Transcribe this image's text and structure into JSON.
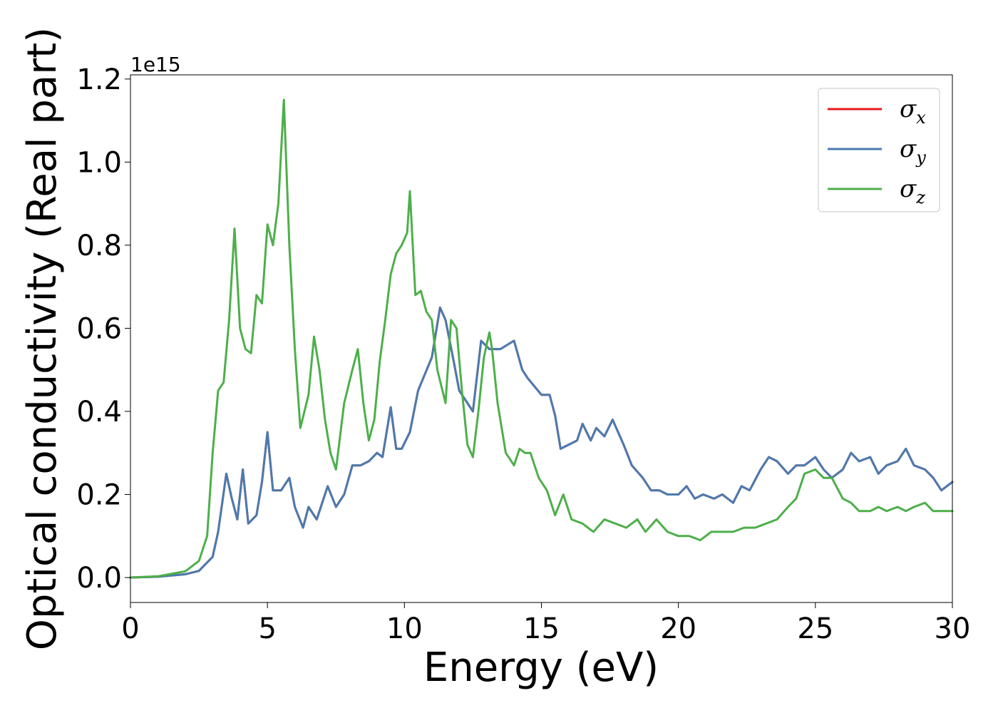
{
  "chart_data": {
    "type": "line",
    "xlabel": "Energy (eV)",
    "ylabel": "Optical conductivity (Real part)",
    "y_offset_label": "1e15",
    "xlim": [
      0,
      30
    ],
    "ylim": [
      -0.06,
      1.21
    ],
    "x_ticks": [
      0,
      5,
      10,
      15,
      20,
      25,
      30
    ],
    "y_ticks": [
      0.0,
      0.2,
      0.4,
      0.6,
      0.8,
      1.0,
      1.2
    ],
    "x_tick_labels": [
      "0",
      "5",
      "10",
      "15",
      "20",
      "25",
      "30"
    ],
    "y_tick_labels": [
      "0.0",
      "0.2",
      "0.4",
      "0.6",
      "0.8",
      "1.0",
      "1.2"
    ],
    "grid": false,
    "legend_position": "top-right",
    "series": [
      {
        "name": "σx",
        "symbol": "σ",
        "subscript": "x",
        "color": "#e41a1c",
        "hidden_under": "σy",
        "x": [
          0,
          1,
          2,
          2.5,
          3,
          3.2,
          3.5,
          3.7,
          3.9,
          4.1,
          4.3,
          4.6,
          4.8,
          5,
          5.2,
          5.5,
          5.8,
          6,
          6.3,
          6.5,
          6.8,
          7.2,
          7.5,
          7.8,
          8.1,
          8.4,
          8.7,
          9,
          9.2,
          9.5,
          9.7,
          9.9,
          10.2,
          10.5,
          11,
          11.3,
          11.5,
          11.8,
          12,
          12.5,
          12.8,
          13.1,
          13.5,
          14,
          14.3,
          14.5,
          15,
          15.3,
          15.5,
          15.7,
          16,
          16.3,
          16.5,
          16.8,
          17,
          17.3,
          17.6,
          18,
          18.3,
          18.7,
          19,
          19.3,
          19.6,
          20,
          20.3,
          20.6,
          20.9,
          21.3,
          21.6,
          22,
          22.3,
          22.6,
          23,
          23.3,
          23.6,
          24,
          24.3,
          24.6,
          25,
          25.3,
          25.6,
          26,
          26.3,
          26.6,
          27,
          27.3,
          27.6,
          28,
          28.3,
          28.6,
          29,
          29.3,
          29.6,
          30
        ],
        "values": [
          0,
          0.002,
          0.008,
          0.016,
          0.05,
          0.11,
          0.25,
          0.19,
          0.14,
          0.26,
          0.13,
          0.15,
          0.23,
          0.35,
          0.21,
          0.21,
          0.24,
          0.17,
          0.12,
          0.17,
          0.14,
          0.22,
          0.17,
          0.2,
          0.27,
          0.27,
          0.28,
          0.3,
          0.29,
          0.41,
          0.31,
          0.31,
          0.35,
          0.45,
          0.53,
          0.65,
          0.62,
          0.52,
          0.45,
          0.4,
          0.57,
          0.55,
          0.55,
          0.57,
          0.5,
          0.48,
          0.44,
          0.44,
          0.39,
          0.31,
          0.32,
          0.33,
          0.37,
          0.33,
          0.36,
          0.34,
          0.38,
          0.32,
          0.27,
          0.24,
          0.21,
          0.21,
          0.2,
          0.2,
          0.22,
          0.19,
          0.2,
          0.19,
          0.2,
          0.18,
          0.22,
          0.21,
          0.26,
          0.29,
          0.28,
          0.25,
          0.27,
          0.27,
          0.29,
          0.26,
          0.24,
          0.26,
          0.3,
          0.28,
          0.29,
          0.25,
          0.27,
          0.28,
          0.31,
          0.27,
          0.26,
          0.24,
          0.21,
          0.23
        ]
      },
      {
        "name": "σy",
        "symbol": "σ",
        "subscript": "y",
        "color": "#4a7bb0",
        "x": [
          0,
          1,
          2,
          2.5,
          3,
          3.2,
          3.5,
          3.7,
          3.9,
          4.1,
          4.3,
          4.6,
          4.8,
          5,
          5.2,
          5.5,
          5.8,
          6,
          6.3,
          6.5,
          6.8,
          7.2,
          7.5,
          7.8,
          8.1,
          8.4,
          8.7,
          9,
          9.2,
          9.5,
          9.7,
          9.9,
          10.2,
          10.5,
          11,
          11.3,
          11.5,
          11.8,
          12,
          12.5,
          12.8,
          13.1,
          13.5,
          14,
          14.3,
          14.5,
          15,
          15.3,
          15.5,
          15.7,
          16,
          16.3,
          16.5,
          16.8,
          17,
          17.3,
          17.6,
          18,
          18.3,
          18.7,
          19,
          19.3,
          19.6,
          20,
          20.3,
          20.6,
          20.9,
          21.3,
          21.6,
          22,
          22.3,
          22.6,
          23,
          23.3,
          23.6,
          24,
          24.3,
          24.6,
          25,
          25.3,
          25.6,
          26,
          26.3,
          26.6,
          27,
          27.3,
          27.6,
          28,
          28.3,
          28.6,
          29,
          29.3,
          29.6,
          30
        ],
        "values": [
          0,
          0.002,
          0.008,
          0.016,
          0.05,
          0.11,
          0.25,
          0.19,
          0.14,
          0.26,
          0.13,
          0.15,
          0.23,
          0.35,
          0.21,
          0.21,
          0.24,
          0.17,
          0.12,
          0.17,
          0.14,
          0.22,
          0.17,
          0.2,
          0.27,
          0.27,
          0.28,
          0.3,
          0.29,
          0.41,
          0.31,
          0.31,
          0.35,
          0.45,
          0.53,
          0.65,
          0.62,
          0.52,
          0.45,
          0.4,
          0.57,
          0.55,
          0.55,
          0.57,
          0.5,
          0.48,
          0.44,
          0.44,
          0.39,
          0.31,
          0.32,
          0.33,
          0.37,
          0.33,
          0.36,
          0.34,
          0.38,
          0.32,
          0.27,
          0.24,
          0.21,
          0.21,
          0.2,
          0.2,
          0.22,
          0.19,
          0.2,
          0.19,
          0.2,
          0.18,
          0.22,
          0.21,
          0.26,
          0.29,
          0.28,
          0.25,
          0.27,
          0.27,
          0.29,
          0.26,
          0.24,
          0.26,
          0.3,
          0.28,
          0.29,
          0.25,
          0.27,
          0.28,
          0.31,
          0.27,
          0.26,
          0.24,
          0.21,
          0.23
        ]
      },
      {
        "name": "σz",
        "symbol": "σ",
        "subscript": "z",
        "color": "#4daf4a",
        "x": [
          0,
          1,
          2,
          2.5,
          2.8,
          3,
          3.2,
          3.4,
          3.6,
          3.8,
          4,
          4.2,
          4.4,
          4.6,
          4.8,
          5,
          5.2,
          5.4,
          5.6,
          5.8,
          6,
          6.2,
          6.5,
          6.7,
          6.9,
          7.1,
          7.3,
          7.5,
          7.8,
          8.1,
          8.3,
          8.5,
          8.7,
          8.9,
          9.1,
          9.3,
          9.5,
          9.7,
          9.9,
          10.1,
          10.2,
          10.4,
          10.6,
          10.8,
          11,
          11.2,
          11.5,
          11.7,
          11.9,
          12.1,
          12.3,
          12.5,
          12.7,
          12.9,
          13.1,
          13.2,
          13.4,
          13.7,
          14,
          14.2,
          14.4,
          14.6,
          14.9,
          15.2,
          15.5,
          15.8,
          16.1,
          16.5,
          16.9,
          17.3,
          17.7,
          18.1,
          18.5,
          18.8,
          19.2,
          19.6,
          20,
          20.4,
          20.8,
          21.2,
          21.6,
          22,
          22.4,
          22.8,
          23.2,
          23.6,
          24,
          24.3,
          24.6,
          25,
          25.3,
          25.6,
          26,
          26.3,
          26.6,
          27,
          27.3,
          27.6,
          28,
          28.3,
          28.6,
          29,
          29.3,
          29.6,
          30
        ],
        "values": [
          0,
          0.003,
          0.015,
          0.04,
          0.1,
          0.3,
          0.45,
          0.47,
          0.62,
          0.84,
          0.6,
          0.55,
          0.54,
          0.68,
          0.66,
          0.85,
          0.8,
          0.9,
          1.15,
          0.8,
          0.55,
          0.36,
          0.44,
          0.58,
          0.5,
          0.38,
          0.3,
          0.26,
          0.42,
          0.5,
          0.55,
          0.42,
          0.33,
          0.38,
          0.52,
          0.62,
          0.73,
          0.78,
          0.8,
          0.83,
          0.93,
          0.68,
          0.69,
          0.64,
          0.62,
          0.5,
          0.42,
          0.62,
          0.6,
          0.45,
          0.32,
          0.29,
          0.4,
          0.53,
          0.59,
          0.55,
          0.42,
          0.3,
          0.27,
          0.31,
          0.3,
          0.3,
          0.24,
          0.21,
          0.15,
          0.2,
          0.14,
          0.13,
          0.11,
          0.14,
          0.13,
          0.12,
          0.14,
          0.11,
          0.14,
          0.11,
          0.1,
          0.1,
          0.09,
          0.11,
          0.11,
          0.11,
          0.12,
          0.12,
          0.13,
          0.14,
          0.17,
          0.19,
          0.25,
          0.26,
          0.24,
          0.24,
          0.19,
          0.18,
          0.16,
          0.16,
          0.17,
          0.16,
          0.17,
          0.16,
          0.17,
          0.18,
          0.16,
          0.16,
          0.16
        ]
      }
    ]
  }
}
